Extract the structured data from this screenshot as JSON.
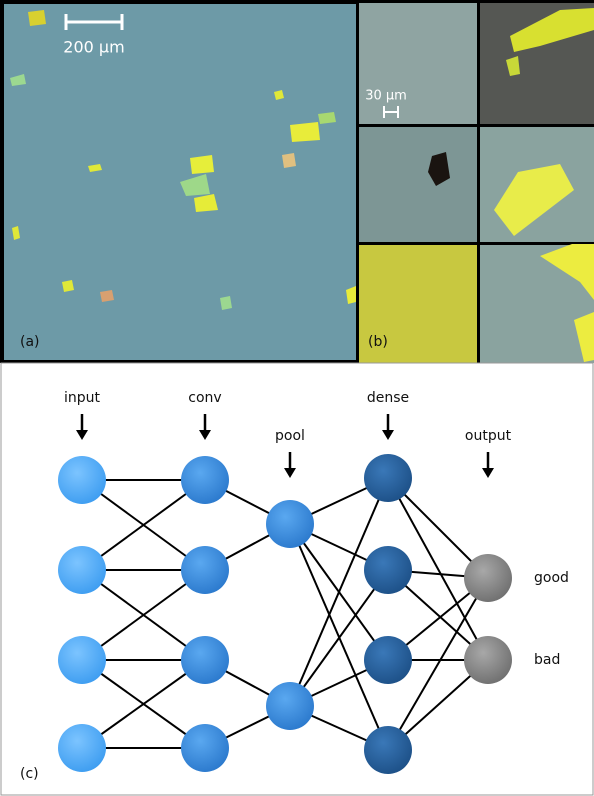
{
  "panel_a": {
    "scale_bar": "200 µm",
    "label": "(a)"
  },
  "panel_b": {
    "scale_bar": "30 µm",
    "label": "(b)"
  },
  "panel_c": {
    "label": "(c)",
    "layers": [
      "input",
      "conv",
      "pool",
      "dense",
      "output"
    ],
    "outputs": [
      "good",
      "bad"
    ]
  }
}
